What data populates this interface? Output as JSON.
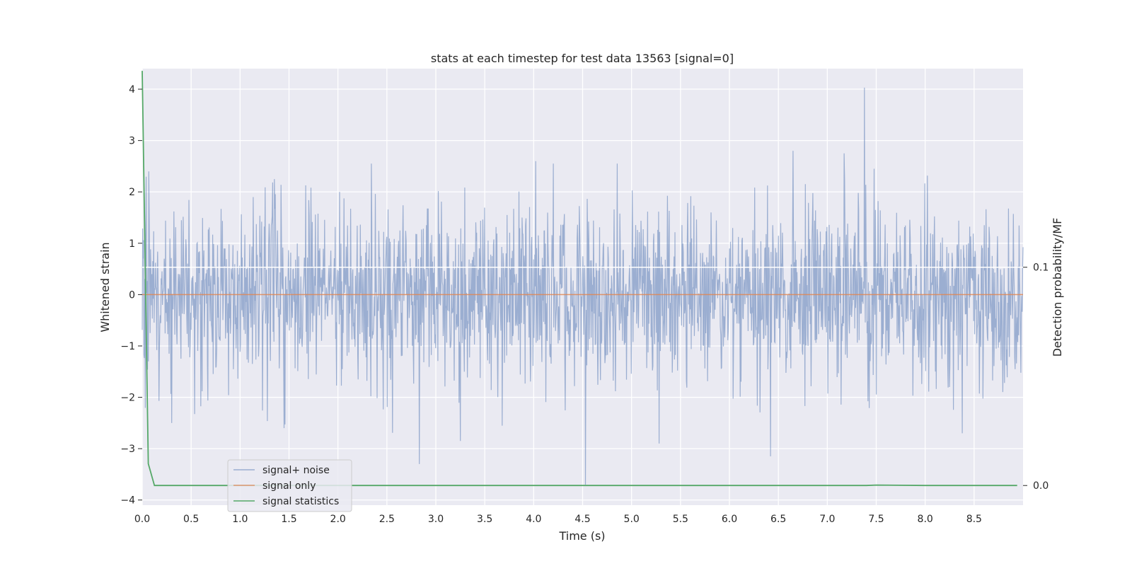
{
  "chart_data": {
    "type": "line",
    "title": "stats at each timestep for test data 13563 [signal=0]",
    "xlabel": "Time (s)",
    "ylabel": "Whitened strain",
    "y2label": "Detection probability/MF",
    "xlim": [
      0.0,
      9.0
    ],
    "ylim": [
      -4.1,
      4.4
    ],
    "y2lim": [
      -0.009,
      0.191
    ],
    "xticks": [
      0.0,
      0.5,
      1.0,
      1.5,
      2.0,
      2.5,
      3.0,
      3.5,
      4.0,
      4.5,
      5.0,
      5.5,
      6.0,
      6.5,
      7.0,
      7.5,
      8.0,
      8.5
    ],
    "xtick_labels": [
      "0.0",
      "0.5",
      "1.0",
      "1.5",
      "2.0",
      "2.5",
      "3.0",
      "3.5",
      "4.0",
      "4.5",
      "5.0",
      "5.5",
      "6.0",
      "6.5",
      "7.0",
      "7.5",
      "8.0",
      "8.5"
    ],
    "yticks": [
      -4,
      -3,
      -2,
      -1,
      0,
      1,
      2,
      3,
      4
    ],
    "ytick_labels": [
      "−4",
      "−3",
      "−2",
      "−1",
      "0",
      "1",
      "2",
      "3",
      "4"
    ],
    "y2ticks": [
      0.0,
      0.1
    ],
    "y2tick_labels": [
      "0.0",
      "0.1"
    ],
    "grid": true,
    "legend_position": "lower-left",
    "series": [
      {
        "name": "signal+ noise",
        "color": "#4c72b0",
        "axis": "left",
        "noise_profile": {
          "samples": 2000,
          "sigma": 0.85,
          "min": -3.7,
          "max": 4.03,
          "peaks": [
            [
              7.38,
              4.03
            ],
            [
              4.53,
              -3.7
            ],
            [
              2.83,
              -3.3
            ],
            [
              6.42,
              -3.15
            ],
            [
              3.25,
              -2.85
            ],
            [
              5.28,
              -2.9
            ],
            [
              4.02,
              2.6
            ],
            [
              4.2,
              2.55
            ],
            [
              6.65,
              2.8
            ],
            [
              7.17,
              2.75
            ],
            [
              7.48,
              2.45
            ],
            [
              0.3,
              -2.5
            ],
            [
              8.38,
              -2.7
            ],
            [
              1.45,
              -2.6
            ]
          ]
        }
      },
      {
        "name": "signal only",
        "color": "#dd8452",
        "axis": "left",
        "x": [
          0.0,
          9.0
        ],
        "y": [
          0.0,
          0.0
        ]
      },
      {
        "name": "signal statistics",
        "color": "#55a868",
        "axis": "right",
        "x": [
          0.0,
          0.0625,
          0.125,
          0.25,
          0.5,
          1.0,
          2.0,
          3.0,
          4.0,
          5.0,
          6.0,
          7.0,
          7.4,
          7.5,
          8.0,
          8.94
        ],
        "y": [
          0.19,
          0.01,
          0.0,
          0.0,
          0.0,
          0.0,
          0.0,
          0.0,
          0.0,
          0.0,
          0.0,
          0.0,
          0.0,
          0.0002,
          0.0,
          0.0
        ]
      }
    ],
    "right_axis_gridline": 0.1
  }
}
